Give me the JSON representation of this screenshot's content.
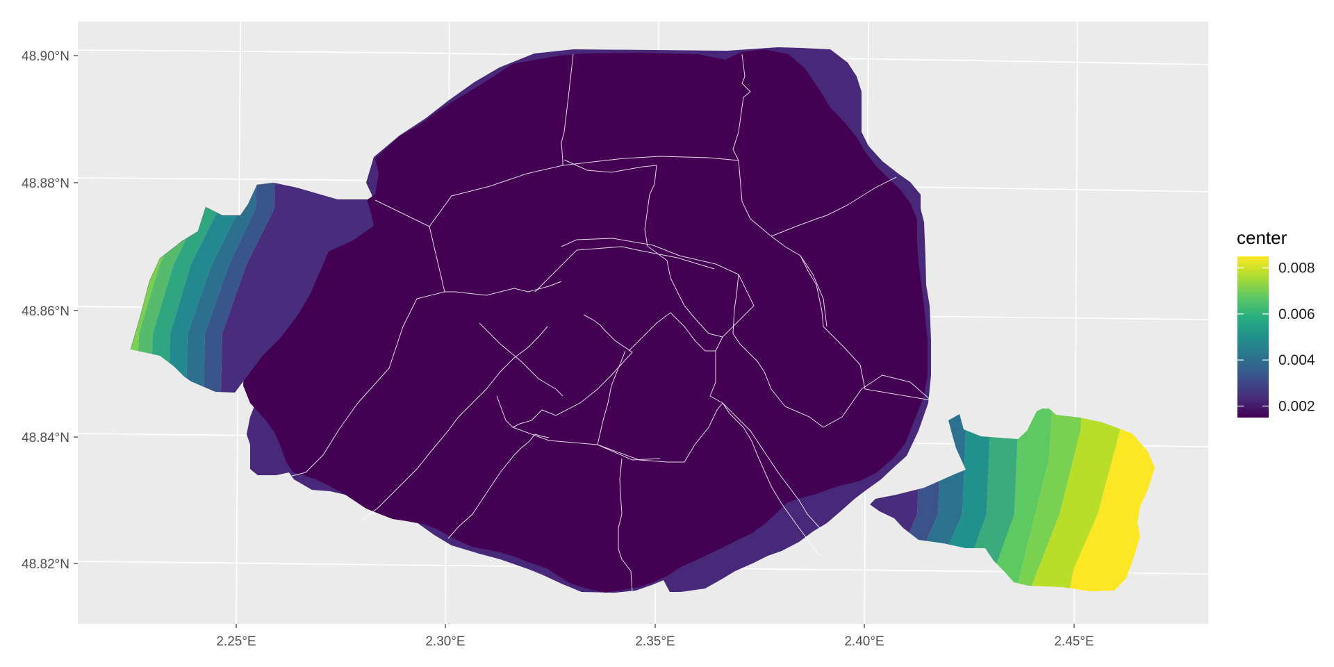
{
  "map": {
    "x_ticks": [
      "2.25°E",
      "2.30°E",
      "2.35°E",
      "2.40°E",
      "2.45°E"
    ],
    "y_ticks": [
      "48.90°N",
      "48.88°N",
      "48.86°N",
      "48.84°N",
      "48.82°N"
    ],
    "x_range": [
      2.215,
      2.484
    ],
    "y_range": [
      48.811,
      48.906
    ],
    "background_color": "#ebebeb",
    "grid_color": "#ffffff",
    "district_count": 20
  },
  "legend": {
    "title": "center",
    "labels": [
      "0.008",
      "0.006",
      "0.004",
      "0.002"
    ],
    "values": [
      0.008,
      0.006,
      0.004,
      0.002
    ],
    "range": [
      0.0015,
      0.0085
    ],
    "placement": "right",
    "palette": [
      "#440154",
      "#472d7b",
      "#3b528b",
      "#2c728e",
      "#21918c",
      "#28ae80",
      "#5ec962",
      "#addc30",
      "#fde725"
    ]
  }
}
